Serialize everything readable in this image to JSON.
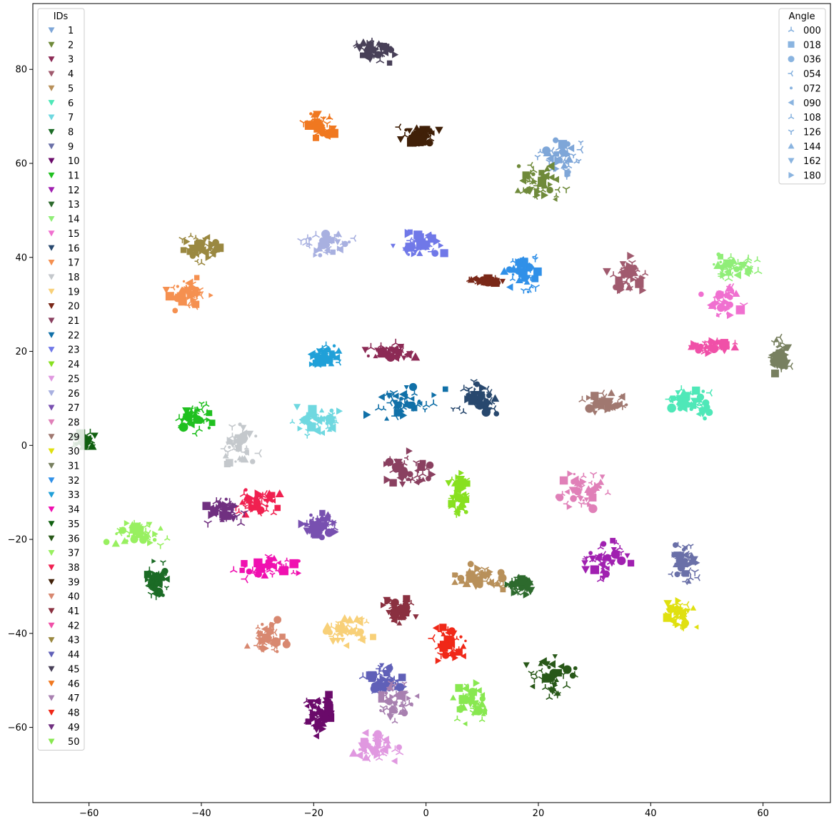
{
  "chart_data": {
    "type": "scatter",
    "title": "",
    "xlabel": "",
    "ylabel": "",
    "xlim": [
      -70,
      72
    ],
    "ylim": [
      -76,
      94
    ],
    "xticks": [
      -60,
      -40,
      -20,
      0,
      20,
      40,
      60
    ],
    "yticks": [
      -60,
      -40,
      -20,
      0,
      20,
      40,
      60,
      80
    ],
    "xtick_labels": [
      "−60",
      "−40",
      "−20",
      "0",
      "20",
      "40",
      "60"
    ],
    "ytick_labels": [
      "−60",
      "−40",
      "−20",
      "0",
      "20",
      "40",
      "60",
      "80"
    ],
    "grid": false,
    "legend_ids": {
      "title": "IDs",
      "placement": "upper-left",
      "entries": [
        {
          "label": "1",
          "color": "#7ea6d8"
        },
        {
          "label": "2",
          "color": "#6f8a3a"
        },
        {
          "label": "3",
          "color": "#8c2a55"
        },
        {
          "label": "4",
          "color": "#a05a6e"
        },
        {
          "label": "5",
          "color": "#b8905a"
        },
        {
          "label": "6",
          "color": "#4fe8b8"
        },
        {
          "label": "7",
          "color": "#6fd8e0"
        },
        {
          "label": "8",
          "color": "#1b6b25"
        },
        {
          "label": "9",
          "color": "#6a70a8"
        },
        {
          "label": "10",
          "color": "#6a0a6a"
        },
        {
          "label": "11",
          "color": "#20c020"
        },
        {
          "label": "12",
          "color": "#a020b0"
        },
        {
          "label": "13",
          "color": "#2d6a2d"
        },
        {
          "label": "14",
          "color": "#90ee78"
        },
        {
          "label": "15",
          "color": "#f070d0"
        },
        {
          "label": "16",
          "color": "#28486e"
        },
        {
          "label": "17",
          "color": "#f59050"
        },
        {
          "label": "18",
          "color": "#c4c8cc"
        },
        {
          "label": "19",
          "color": "#f8d078"
        },
        {
          "label": "20",
          "color": "#7a2818"
        },
        {
          "label": "21",
          "color": "#8a4060"
        },
        {
          "label": "22",
          "color": "#1070a8"
        },
        {
          "label": "23",
          "color": "#7078e8"
        },
        {
          "label": "24",
          "color": "#88e020"
        },
        {
          "label": "25",
          "color": "#e098e0"
        },
        {
          "label": "26",
          "color": "#a8b0e0"
        },
        {
          "label": "27",
          "color": "#7850b0"
        },
        {
          "label": "28",
          "color": "#e080b8"
        },
        {
          "label": "29",
          "color": "#a07870"
        },
        {
          "label": "30",
          "color": "#e0e010"
        },
        {
          "label": "31",
          "color": "#788060"
        },
        {
          "label": "32",
          "color": "#3090e8"
        },
        {
          "label": "33",
          "color": "#20a0d8"
        },
        {
          "label": "34",
          "color": "#f010b0"
        },
        {
          "label": "35",
          "color": "#106010"
        },
        {
          "label": "36",
          "color": "#285818"
        },
        {
          "label": "37",
          "color": "#98f060"
        },
        {
          "label": "38",
          "color": "#f02050"
        },
        {
          "label": "39",
          "color": "#402008"
        },
        {
          "label": "40",
          "color": "#d88870"
        },
        {
          "label": "41",
          "color": "#8a3040"
        },
        {
          "label": "42",
          "color": "#f050a8"
        },
        {
          "label": "43",
          "color": "#9a8840"
        },
        {
          "label": "44",
          "color": "#6060b8"
        },
        {
          "label": "45",
          "color": "#484058"
        },
        {
          "label": "46",
          "color": "#f07820"
        },
        {
          "label": "47",
          "color": "#a880b0"
        },
        {
          "label": "48",
          "color": "#f02818"
        },
        {
          "label": "49",
          "color": "#703080"
        },
        {
          "label": "50",
          "color": "#88e850"
        }
      ]
    },
    "legend_angle": {
      "title": "Angle",
      "placement": "upper-right",
      "marker_color": "#8ab4e0",
      "entries": [
        {
          "label": "000",
          "marker": "tri_up"
        },
        {
          "label": "018",
          "marker": "square"
        },
        {
          "label": "036",
          "marker": "circle"
        },
        {
          "label": "054",
          "marker": "tri_left"
        },
        {
          "label": "072",
          "marker": "point"
        },
        {
          "label": "090",
          "marker": "triangle_left"
        },
        {
          "label": "108",
          "marker": "tri_right"
        },
        {
          "label": "126",
          "marker": "tri_down"
        },
        {
          "label": "144",
          "marker": "triangle_up"
        },
        {
          "label": "162",
          "marker": "triangle_down"
        },
        {
          "label": "180",
          "marker": "triangle_right"
        }
      ]
    },
    "clusters": [
      {
        "id": "1",
        "x": 24,
        "y": 61,
        "sx": 3,
        "sy": 3
      },
      {
        "id": "2",
        "x": 20,
        "y": 56,
        "sx": 3,
        "sy": 3
      },
      {
        "id": "3",
        "x": -6,
        "y": 20,
        "sx": 3,
        "sy": 1.2
      },
      {
        "id": "4",
        "x": 36,
        "y": 36,
        "sx": 2.5,
        "sy": 3
      },
      {
        "id": "5",
        "x": 10,
        "y": -28,
        "sx": 4,
        "sy": 2
      },
      {
        "id": "6",
        "x": 47,
        "y": 9,
        "sx": 3,
        "sy": 2.5
      },
      {
        "id": "7",
        "x": -20,
        "y": 5,
        "sx": 3.5,
        "sy": 2.5
      },
      {
        "id": "8",
        "x": -48,
        "y": -29,
        "sx": 1.5,
        "sy": 3
      },
      {
        "id": "9",
        "x": 46,
        "y": -25,
        "sx": 2,
        "sy": 3
      },
      {
        "id": "10",
        "x": -19,
        "y": -57,
        "sx": 2,
        "sy": 3
      },
      {
        "id": "11",
        "x": -41,
        "y": 6,
        "sx": 2,
        "sy": 2.5
      },
      {
        "id": "12",
        "x": 32,
        "y": -24,
        "sx": 3,
        "sy": 3
      },
      {
        "id": "13",
        "x": 17,
        "y": -30,
        "sx": 2,
        "sy": 1.5
      },
      {
        "id": "14",
        "x": 55,
        "y": 38,
        "sx": 3.5,
        "sy": 2
      },
      {
        "id": "15",
        "x": 53,
        "y": 31,
        "sx": 2.5,
        "sy": 2.5
      },
      {
        "id": "16",
        "x": 9,
        "y": 10,
        "sx": 3,
        "sy": 2.5
      },
      {
        "id": "17",
        "x": -42,
        "y": 32,
        "sx": 3,
        "sy": 2.5
      },
      {
        "id": "18",
        "x": -33,
        "y": 0,
        "sx": 2.5,
        "sy": 3.5
      },
      {
        "id": "19",
        "x": -14,
        "y": -39,
        "sx": 3,
        "sy": 2.5
      },
      {
        "id": "20",
        "x": 11,
        "y": 35,
        "sx": 2,
        "sy": 0.5
      },
      {
        "id": "21",
        "x": -4,
        "y": -6,
        "sx": 4,
        "sy": 3
      },
      {
        "id": "22",
        "x": -4,
        "y": 9,
        "sx": 5,
        "sy": 2.5
      },
      {
        "id": "23",
        "x": -1,
        "y": 43,
        "sx": 3,
        "sy": 2
      },
      {
        "id": "24",
        "x": 6,
        "y": -10,
        "sx": 1.5,
        "sy": 4
      },
      {
        "id": "25",
        "x": -9,
        "y": -64,
        "sx": 3,
        "sy": 2.5
      },
      {
        "id": "26",
        "x": -18,
        "y": 43,
        "sx": 3.5,
        "sy": 2
      },
      {
        "id": "27",
        "x": -19,
        "y": -17,
        "sx": 3,
        "sy": 2.5
      },
      {
        "id": "28",
        "x": 28,
        "y": -9,
        "sx": 4,
        "sy": 3
      },
      {
        "id": "29",
        "x": 32,
        "y": 9,
        "sx": 3,
        "sy": 1.5
      },
      {
        "id": "30",
        "x": 45,
        "y": -36,
        "sx": 2,
        "sy": 2.5
      },
      {
        "id": "31",
        "x": 63,
        "y": 19,
        "sx": 1.5,
        "sy": 3
      },
      {
        "id": "32",
        "x": 17,
        "y": 37,
        "sx": 2.5,
        "sy": 3
      },
      {
        "id": "33",
        "x": -18,
        "y": 19,
        "sx": 2,
        "sy": 2
      },
      {
        "id": "34",
        "x": -28,
        "y": -26,
        "sx": 4,
        "sy": 2
      },
      {
        "id": "35",
        "x": -61,
        "y": 1,
        "sx": 1.5,
        "sy": 1.5
      },
      {
        "id": "36",
        "x": 22,
        "y": -49,
        "sx": 3,
        "sy": 3.5
      },
      {
        "id": "37",
        "x": -51,
        "y": -19,
        "sx": 4,
        "sy": 2
      },
      {
        "id": "38",
        "x": -30,
        "y": -12,
        "sx": 3,
        "sy": 2
      },
      {
        "id": "39",
        "x": -1,
        "y": 66,
        "sx": 2.5,
        "sy": 1.5
      },
      {
        "id": "40",
        "x": -28,
        "y": -41,
        "sx": 2.5,
        "sy": 3
      },
      {
        "id": "41",
        "x": -5,
        "y": -35,
        "sx": 2,
        "sy": 2
      },
      {
        "id": "42",
        "x": 51,
        "y": 21,
        "sx": 3.5,
        "sy": 1.2
      },
      {
        "id": "43",
        "x": -40,
        "y": 42,
        "sx": 2.5,
        "sy": 2
      },
      {
        "id": "44",
        "x": -7,
        "y": -50,
        "sx": 3,
        "sy": 3
      },
      {
        "id": "45",
        "x": -9,
        "y": 84,
        "sx": 2.5,
        "sy": 2
      },
      {
        "id": "46",
        "x": -19,
        "y": 68,
        "sx": 2,
        "sy": 2
      },
      {
        "id": "47",
        "x": -5,
        "y": -54,
        "sx": 2.5,
        "sy": 3
      },
      {
        "id": "48",
        "x": 4,
        "y": -42,
        "sx": 2,
        "sy": 3.5
      },
      {
        "id": "49",
        "x": -36,
        "y": -14,
        "sx": 2.5,
        "sy": 2
      },
      {
        "id": "50",
        "x": 8,
        "y": -55,
        "sx": 2.5,
        "sy": 3
      }
    ]
  }
}
